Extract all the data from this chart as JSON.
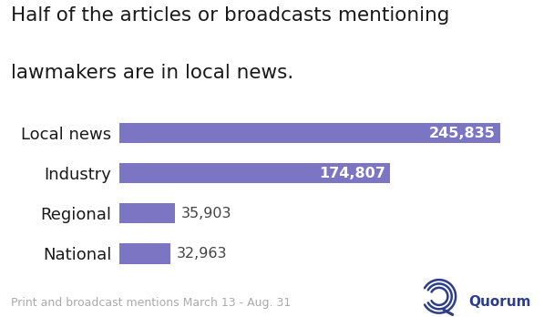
{
  "title_line1": "Half of the articles or broadcasts mentioning",
  "title_line2": "lawmakers are in local news.",
  "categories": [
    "Local news",
    "Industry",
    "Regional",
    "National"
  ],
  "values": [
    245835,
    174807,
    35903,
    32963
  ],
  "labels": [
    "245,835",
    "174,807",
    "35,903",
    "32,963"
  ],
  "bar_color": "#7b75c4",
  "label_color_inside": "#ffffff",
  "label_color_outside": "#444444",
  "background_color": "#ffffff",
  "footer_text": "Print and broadcast mentions March 13 - Aug. 31",
  "footer_color": "#aaaaaa",
  "title_color": "#1a1a1a",
  "category_color": "#1a1a1a",
  "xlim": [
    0,
    270000
  ],
  "bar_height": 0.5,
  "title_fontsize": 15.5,
  "category_fontsize": 13,
  "label_fontsize": 11.5,
  "footer_fontsize": 9,
  "quorum_text": "Quorum",
  "quorum_color": "#2c3e8a",
  "inside_threshold": 80000
}
